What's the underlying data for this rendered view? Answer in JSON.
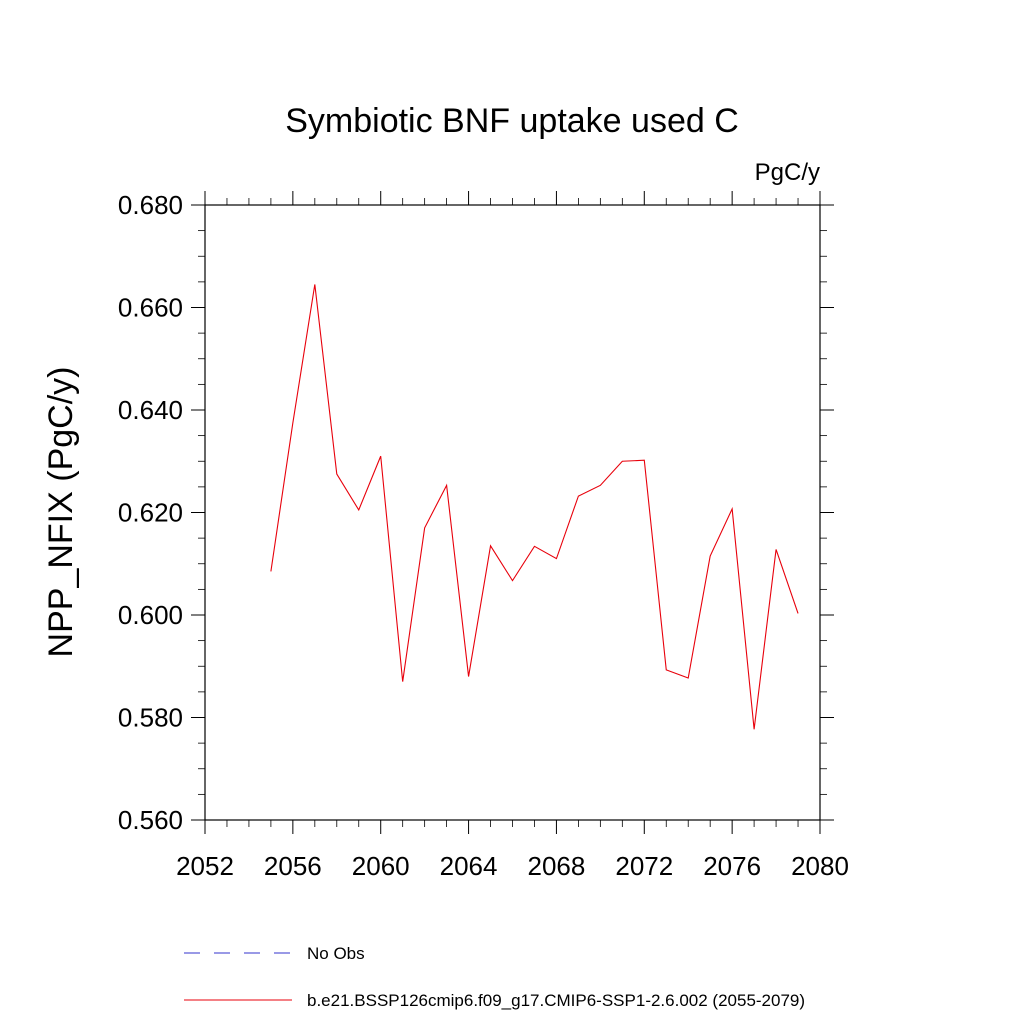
{
  "chart_data": {
    "type": "line",
    "title": "Symbiotic BNF uptake used C",
    "units_label": "PgC/y",
    "xlabel": "",
    "ylabel": "NPP_NFIX  (PgC/y)",
    "xlim": [
      2052,
      2080
    ],
    "ylim": [
      0.56,
      0.68
    ],
    "x_ticks": [
      2052,
      2056,
      2060,
      2064,
      2068,
      2072,
      2076,
      2080
    ],
    "x_tick_labels": [
      "2052",
      "2056",
      "2060",
      "2064",
      "2068",
      "2072",
      "2076",
      "2080"
    ],
    "y_ticks": [
      0.56,
      0.58,
      0.6,
      0.62,
      0.64,
      0.66,
      0.68
    ],
    "y_tick_labels": [
      "0.560",
      "0.580",
      "0.600",
      "0.620",
      "0.640",
      "0.660",
      "0.680"
    ],
    "grid": false,
    "series": [
      {
        "name": "b.e21.BSSP126cmip6.f09_g17.CMIP6-SSP1-2.6.002 (2055-2079)",
        "color": "#e8000b",
        "style": "solid",
        "x": [
          2055,
          2056,
          2057,
          2058,
          2059,
          2060,
          2061,
          2062,
          2063,
          2064,
          2065,
          2066,
          2067,
          2068,
          2069,
          2070,
          2071,
          2072,
          2073,
          2074,
          2075,
          2076,
          2077,
          2078,
          2079
        ],
        "values": [
          0.6085,
          0.6375,
          0.6645,
          0.6275,
          0.6205,
          0.631,
          0.587,
          0.617,
          0.6253,
          0.588,
          0.6135,
          0.6067,
          0.6134,
          0.611,
          0.6232,
          0.6253,
          0.63,
          0.6302,
          0.5893,
          0.5877,
          0.6115,
          0.6207,
          0.5777,
          0.6128,
          0.6003
        ]
      }
    ],
    "legend": {
      "placement": "bottom-left",
      "entries": [
        {
          "label": "No Obs",
          "color": "#3333cc",
          "style": "dashed"
        },
        {
          "label": "b.e21.BSSP126cmip6.f09_g17.CMIP6-SSP1-2.6.002 (2055-2079)",
          "color": "#e8000b",
          "style": "solid"
        }
      ]
    }
  }
}
